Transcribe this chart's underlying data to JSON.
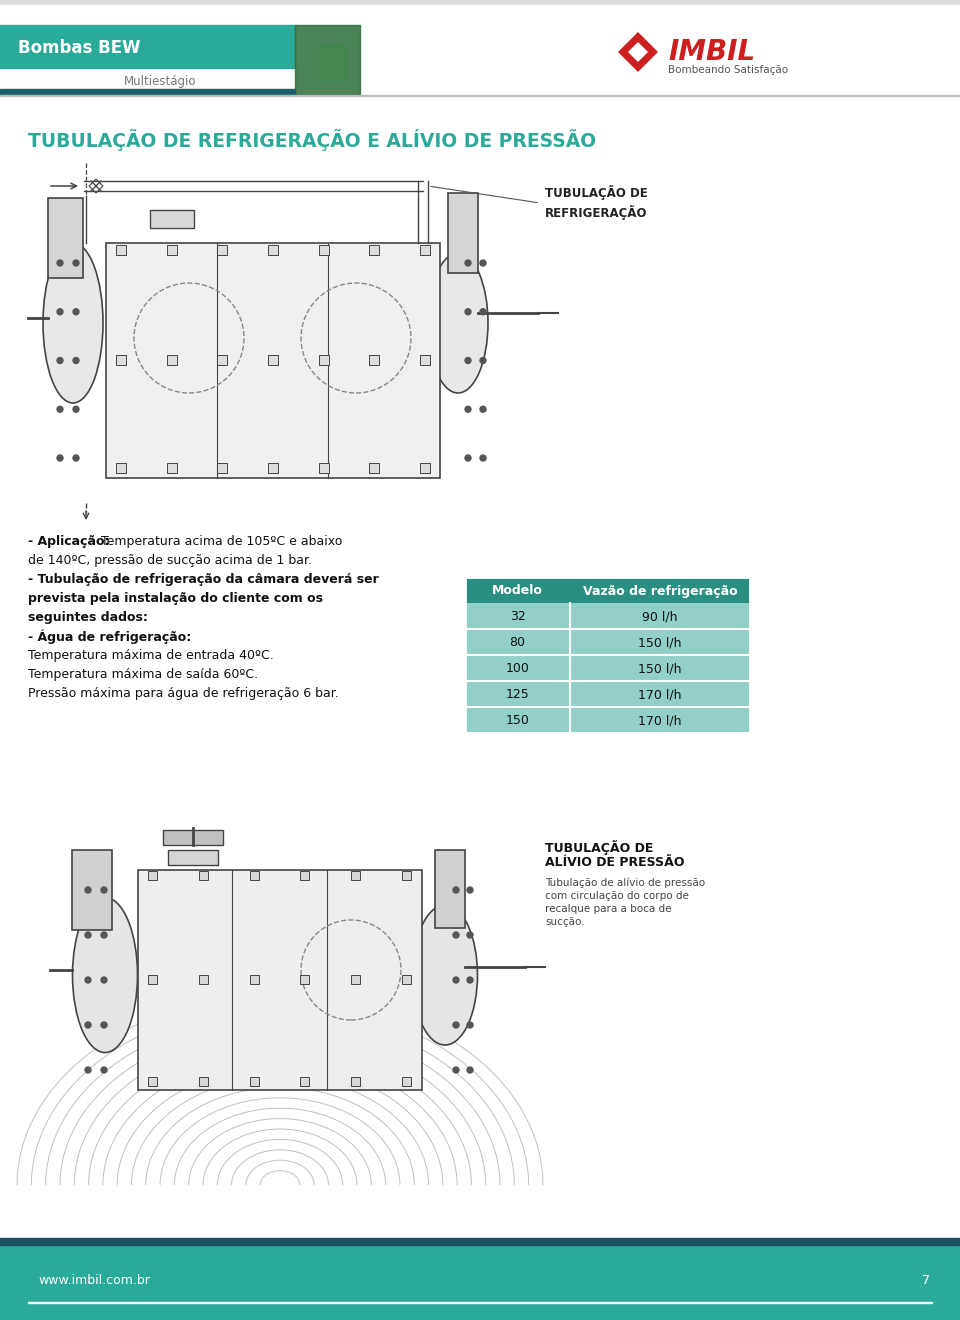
{
  "bg_color": "#ffffff",
  "teal_color": "#2aaa98",
  "dark_teal_header": "#1a5f6a",
  "red_color": "#cc2020",
  "text_dark": "#111111",
  "text_gray": "#555555",
  "footer_teal": "#2aaa98",
  "footer_dark": "#1a5060",
  "title_text": "TUBULAÇÃO DE REFRIGERAÇÃO E ALÍVIO DE PRESSÃO",
  "header_title": "Bombas BEW",
  "header_sub": "Multiestágio",
  "imbil_sub": "Bombeando Satisfação",
  "table_header": [
    "Modelo",
    "Vazão de refrigeração"
  ],
  "table_rows": [
    [
      "32",
      "90 l/h"
    ],
    [
      "80",
      "150 l/h"
    ],
    [
      "100",
      "150 l/h"
    ],
    [
      "125",
      "170 l/h"
    ],
    [
      "150",
      "170 l/h"
    ]
  ],
  "table_header_bg": "#2a8f80",
  "table_row_bg": "#92cfc8",
  "table_row_alt": "#a8d8d2",
  "label_refrig": [
    "TUBULAÇÃO DE",
    "REFRIGERAÇÃO"
  ],
  "label_alivio_title1": "TUBULAÇÃO DE",
  "label_alivio_title2": "ALÍVIO DE PRESSÃO",
  "label_alivio_sub": [
    "Tubulação de alívio de pressão",
    "com circulação do corpo de",
    "recalque para a boca de",
    "sucção."
  ],
  "footer_url": "www.imbil.com.br",
  "footer_page": "7",
  "pump_body_color": "#888888",
  "pump_line_color": "#444444",
  "pump_light": "#cccccc",
  "pump_dark": "#333333",
  "arc_color": "#bbbbbb"
}
